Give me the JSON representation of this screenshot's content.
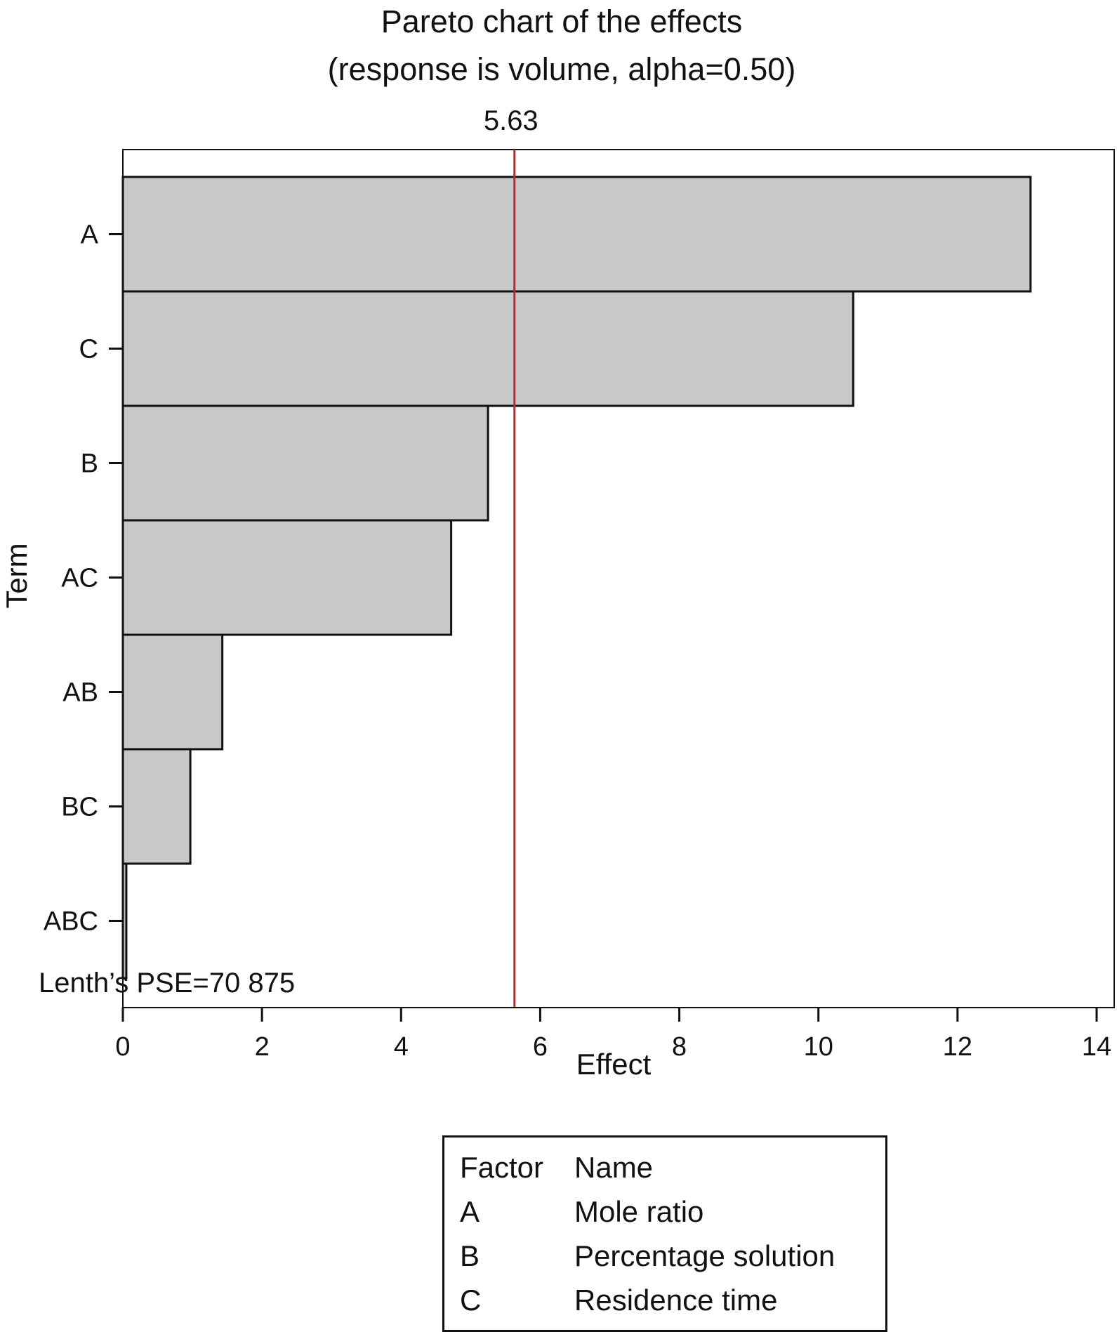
{
  "chart_data": {
    "type": "bar",
    "orientation": "horizontal",
    "title": "Pareto chart of the effects",
    "subtitle": "(response is volume, alpha=0.50)",
    "xlabel": "Effect",
    "ylabel": "Term",
    "categories": [
      "A",
      "C",
      "B",
      "AC",
      "AB",
      "BC",
      "ABC"
    ],
    "values": [
      13.05,
      10.5,
      5.25,
      4.72,
      1.43,
      0.97,
      0.05
    ],
    "xlim": [
      0,
      14
    ],
    "x_ticks": [
      "0",
      "2",
      "4",
      "6",
      "8",
      "10",
      "12",
      "14"
    ],
    "reference_line": {
      "value": 5.63,
      "label": "5.63",
      "color": "#c0282d"
    },
    "bar_color": "#c8c8c8",
    "grid": false,
    "note": "Lenth’s PSE=70 875"
  },
  "factor_table": {
    "headers": [
      "Factor",
      "Name"
    ],
    "rows": [
      [
        "A",
        "Mole ratio"
      ],
      [
        "B",
        "Percentage solution"
      ],
      [
        "C",
        "Residence time"
      ]
    ]
  }
}
